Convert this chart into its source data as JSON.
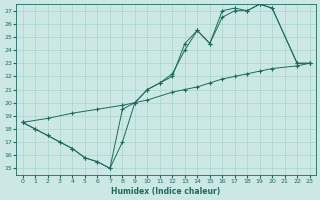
{
  "xlabel": "Humidex (Indice chaleur)",
  "xlim": [
    -0.5,
    23.5
  ],
  "ylim": [
    14.5,
    27.5
  ],
  "xticks": [
    0,
    1,
    2,
    3,
    4,
    5,
    6,
    7,
    8,
    9,
    10,
    11,
    12,
    13,
    14,
    15,
    16,
    17,
    18,
    19,
    20,
    21,
    22,
    23
  ],
  "yticks": [
    15,
    16,
    17,
    18,
    19,
    20,
    21,
    22,
    23,
    24,
    25,
    26,
    27
  ],
  "bg_color": "#cce8e4",
  "grid_color": "#aad4ce",
  "line_color": "#1a6b5e",
  "series1_x": [
    0,
    1,
    2,
    3,
    4,
    5,
    6,
    7,
    8,
    9,
    10,
    11,
    12,
    13,
    14,
    15,
    16,
    17,
    18,
    19,
    20,
    22,
    23
  ],
  "series1_y": [
    18.5,
    18.0,
    17.5,
    17.0,
    16.5,
    15.8,
    15.5,
    15.0,
    19.5,
    20.0,
    21.0,
    21.5,
    22.0,
    24.5,
    25.5,
    24.5,
    27.0,
    27.2,
    27.0,
    27.5,
    27.2,
    23.0,
    23.0
  ],
  "series2_x": [
    0,
    1,
    2,
    3,
    4,
    5,
    6,
    7,
    8,
    9,
    10,
    11,
    12,
    13,
    14,
    15,
    16,
    17,
    18,
    19,
    20,
    22,
    23
  ],
  "series2_y": [
    18.5,
    18.0,
    17.5,
    17.0,
    16.5,
    15.8,
    15.5,
    15.0,
    17.0,
    20.0,
    21.0,
    21.5,
    22.2,
    24.0,
    25.5,
    24.5,
    26.5,
    27.0,
    27.0,
    27.5,
    27.2,
    23.0,
    23.0
  ],
  "series3_x": [
    0,
    2,
    4,
    6,
    8,
    10,
    12,
    13,
    14,
    15,
    16,
    17,
    18,
    19,
    20,
    22,
    23
  ],
  "series3_y": [
    18.5,
    18.8,
    19.2,
    19.5,
    19.8,
    20.2,
    20.8,
    21.0,
    21.2,
    21.5,
    21.8,
    22.0,
    22.2,
    22.4,
    22.6,
    22.8,
    23.0
  ]
}
